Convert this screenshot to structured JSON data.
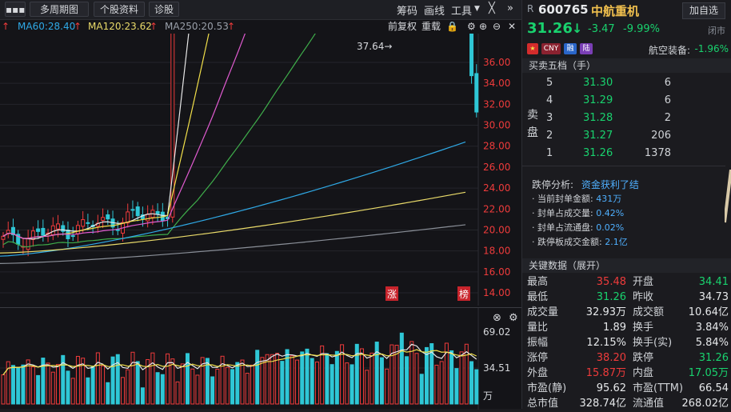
{
  "toolbar": {
    "menu_icon": "more-dots-icon",
    "multi_period": "多周期图",
    "stock_info": "个股资料",
    "diagnose": "诊股",
    "chips": "筹码",
    "draw_line": "画线",
    "tools": "工具",
    "more": "»"
  },
  "ma_legend": {
    "ma60": "MA60:28.40",
    "ma120": "MA120:23.62",
    "ma250": "MA250:20.53",
    "up_arrow": "↑",
    "prefix_arrow": "↑"
  },
  "chart_controls": {
    "pre_adjust": "前复权",
    "overlay": "重载"
  },
  "price_chart": {
    "high_label": "37.64→",
    "y_ticks": [
      "36.00",
      "34.00",
      "32.00",
      "30.00",
      "28.00",
      "26.00",
      "24.00",
      "22.00",
      "20.00",
      "18.00",
      "16.00",
      "14.00"
    ],
    "badge_limit_up": "涨",
    "badge_list": "榜"
  },
  "volume_chart": {
    "y_ticks": [
      "69.02",
      "34.51"
    ],
    "unit": "万"
  },
  "quote": {
    "prefix": "R",
    "code": "600765",
    "name": "中航重机",
    "add_watch": "加自选",
    "price": "31.26",
    "price_arrow": "↓",
    "change": "-3.47",
    "change_pct": "-9.99%",
    "status": "闭市",
    "tags": [
      "CNY",
      "融",
      "陆"
    ],
    "sector": "航空装备:",
    "sector_pct": "-1.96%"
  },
  "order_book": {
    "title": "买卖五档（手）",
    "side_label": [
      "卖",
      "盘"
    ],
    "asks": [
      {
        "level": "5",
        "price": "31.30",
        "vol": "6"
      },
      {
        "level": "4",
        "price": "31.29",
        "vol": "6"
      },
      {
        "level": "3",
        "price": "31.28",
        "vol": "2"
      },
      {
        "level": "2",
        "price": "31.27",
        "vol": "206"
      },
      {
        "level": "1",
        "price": "31.26",
        "vol": "1378"
      }
    ]
  },
  "limit_analysis": {
    "title": "跌停分析:",
    "reason": "资金获利了结",
    "lines": [
      {
        "label": "· 当前封单金额:",
        "value": "431万"
      },
      {
        "label": "· 封单占成交量:",
        "value": "0.42%"
      },
      {
        "label": "· 封单占流通盘:",
        "value": "0.02%"
      },
      {
        "label": "· 跌停板成交金额:",
        "value": "2.1亿"
      }
    ]
  },
  "key_data": {
    "title": "关键数据（展开）",
    "rows": [
      {
        "l1": "最高",
        "v1": "35.48",
        "c1": "red",
        "l2": "开盘",
        "v2": "34.41",
        "c2": "green"
      },
      {
        "l1": "最低",
        "v1": "31.26",
        "c1": "green",
        "l2": "昨收",
        "v2": "34.73",
        "c2": "white"
      },
      {
        "l1": "成交量",
        "v1": "32.93万",
        "c1": "white",
        "l2": "成交额",
        "v2": "10.64亿",
        "c2": "white"
      },
      {
        "l1": "量比",
        "v1": "1.89",
        "c1": "white",
        "l2": "换手",
        "v2": "3.84%",
        "c2": "white"
      },
      {
        "l1": "振幅",
        "v1": "12.15%",
        "c1": "white",
        "l2": "换手(实)",
        "v2": "5.84%",
        "c2": "white"
      },
      {
        "l1": "涨停",
        "v1": "38.20",
        "c1": "red",
        "l2": "跌停",
        "v2": "31.26",
        "c2": "green"
      },
      {
        "l1": "外盘",
        "v1": "15.87万",
        "c1": "red",
        "l2": "内盘",
        "v2": "17.05万",
        "c2": "green"
      },
      {
        "l1": "市盈(静)",
        "v1": "95.62",
        "c1": "white",
        "l2": "市盈(TTM)",
        "v2": "66.54",
        "c2": "white"
      },
      {
        "l1": "总市值",
        "v1": "328.74亿",
        "c1": "white",
        "l2": "流通值",
        "v2": "268.02亿",
        "c2": "white"
      }
    ]
  },
  "colors": {
    "up": "#ee3b3b",
    "down": "#19d26e",
    "ma5": "#e8e8e8",
    "ma10": "#f2e04a",
    "ma20": "#e05bd0",
    "ma60": "#3fae4b",
    "ma120": "#2fa9e6",
    "ma250": "#eadb6a"
  }
}
